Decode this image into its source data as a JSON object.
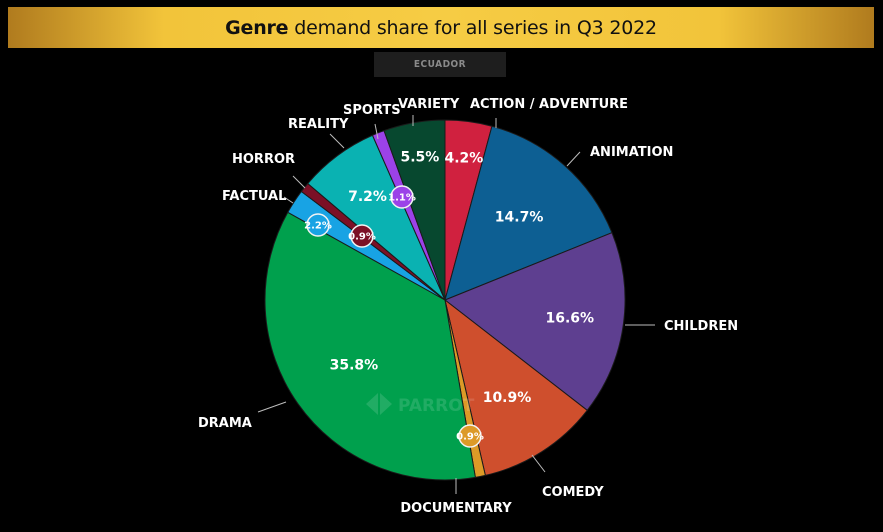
{
  "header": {
    "title_bold": "Genre",
    "title_rest": "demand share for all series in Q3 2022",
    "subtitle": "ECUADOR"
  },
  "watermark": "PARROT",
  "chart_data": {
    "type": "pie",
    "title": "Genre demand share for all series in Q3 2022",
    "subtitle": "ECUADOR",
    "unit": "%",
    "slices": [
      {
        "label": "ACTION / ADVENTURE",
        "value": 4.2,
        "display": "4.2%",
        "color": "#d0213f"
      },
      {
        "label": "ANIMATION",
        "value": 14.7,
        "display": "14.7%",
        "color": "#0d5f93"
      },
      {
        "label": "CHILDREN",
        "value": 16.6,
        "display": "16.6%",
        "color": "#5e3f90"
      },
      {
        "label": "COMEDY",
        "value": 10.9,
        "display": "10.9%",
        "color": "#cf4f2d"
      },
      {
        "label": "DOCUMENTARY",
        "value": 0.9,
        "display": "0.9%",
        "color": "#dc9a27"
      },
      {
        "label": "DRAMA",
        "value": 35.8,
        "display": "35.8%",
        "color": "#00a04d"
      },
      {
        "label": "FACTUAL",
        "value": 2.2,
        "display": "2.2%",
        "color": "#18a3e4"
      },
      {
        "label": "HORROR",
        "value": 0.9,
        "display": "0.9%",
        "color": "#7b1026"
      },
      {
        "label": "REALITY",
        "value": 7.2,
        "display": "7.2%",
        "color": "#0ab2b2"
      },
      {
        "label": "SPORTS",
        "value": 1.1,
        "display": "1.1%",
        "color": "#9b42e8"
      },
      {
        "label": "VARIETY",
        "value": 5.5,
        "display": "5.5%",
        "color": "#07482f"
      }
    ]
  }
}
